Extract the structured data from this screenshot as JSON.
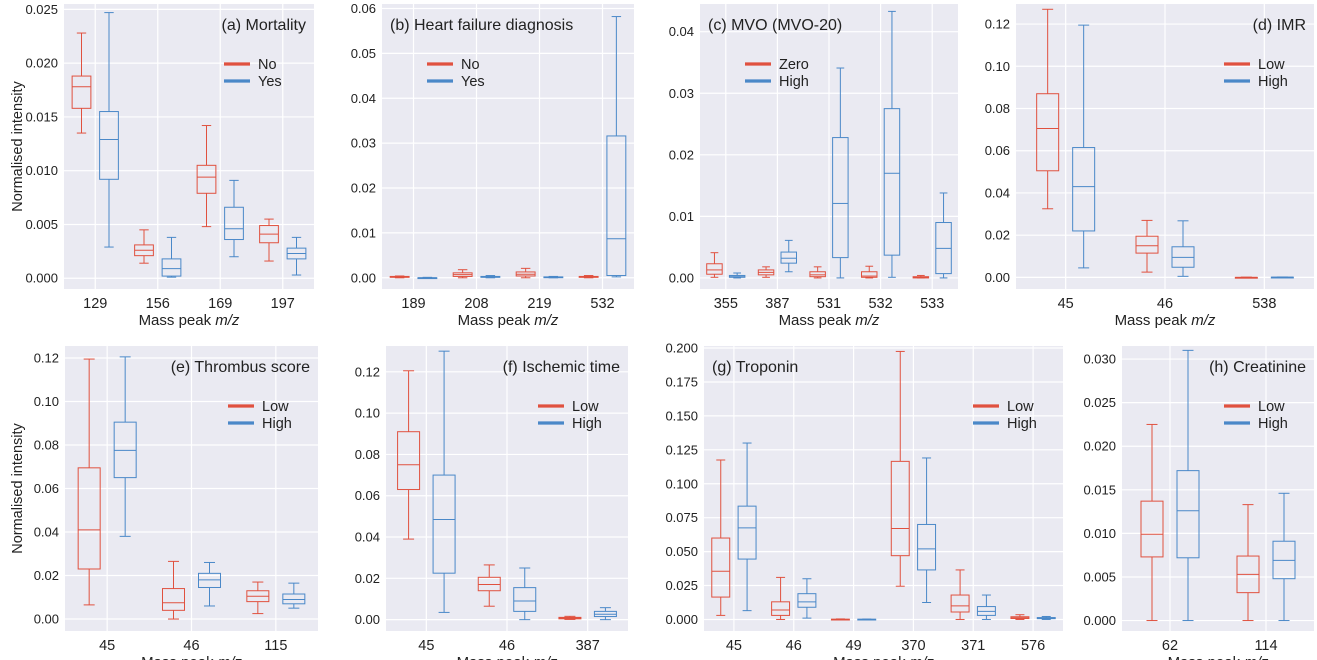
{
  "figure": {
    "ylabel": "Normalised intensity",
    "xlabel_prefix": "Mass peak ",
    "xlabel_italic": "m/z"
  },
  "colors": {
    "group_a": "#e0513f",
    "group_b": "#4a88c8",
    "grid": "#ffffff",
    "panel_bg": "#eaeaf2"
  },
  "chart_data": [
    {
      "type": "box",
      "title": "(a) Mortality",
      "legend": [
        "No",
        "Yes"
      ],
      "legend_position": "top-right",
      "ylim": [
        -0.001,
        0.0255
      ],
      "yticks": [
        0.0,
        0.005,
        0.01,
        0.015,
        0.02,
        0.025
      ],
      "ytick_labels": [
        "0.000",
        "0.005",
        "0.010",
        "0.015",
        "0.020",
        "0.025"
      ],
      "show_ylabel": true,
      "categories": [
        "129",
        "156",
        "169",
        "197"
      ],
      "series": [
        {
          "name": "No",
          "boxes": [
            {
              "min": 0.0135,
              "q1": 0.0158,
              "median": 0.0178,
              "q3": 0.0188,
              "max": 0.0228
            },
            {
              "min": 0.0014,
              "q1": 0.0021,
              "median": 0.0026,
              "q3": 0.0031,
              "max": 0.0045
            },
            {
              "min": 0.0048,
              "q1": 0.0079,
              "median": 0.0094,
              "q3": 0.0105,
              "max": 0.0142
            },
            {
              "min": 0.0016,
              "q1": 0.0033,
              "median": 0.0041,
              "q3": 0.0049,
              "max": 0.0055
            }
          ]
        },
        {
          "name": "Yes",
          "boxes": [
            {
              "min": 0.0029,
              "q1": 0.0092,
              "median": 0.0129,
              "q3": 0.0155,
              "max": 0.0247
            },
            {
              "min": 0.0001,
              "q1": 0.0002,
              "median": 0.0009,
              "q3": 0.0018,
              "max": 0.0038
            },
            {
              "min": 0.002,
              "q1": 0.0036,
              "median": 0.0046,
              "q3": 0.0066,
              "max": 0.0091
            },
            {
              "min": 0.0003,
              "q1": 0.0018,
              "median": 0.0023,
              "q3": 0.0028,
              "max": 0.0038
            }
          ]
        }
      ]
    },
    {
      "type": "box",
      "title": "(b) Heart failure diagnosis",
      "legend": [
        "No",
        "Yes"
      ],
      "legend_position": "top-left",
      "ylim": [
        -0.0025,
        0.061
      ],
      "yticks": [
        0.0,
        0.01,
        0.02,
        0.03,
        0.04,
        0.05,
        0.06
      ],
      "ytick_labels": [
        "0.00",
        "0.01",
        "0.02",
        "0.03",
        "0.04",
        "0.05",
        "0.06"
      ],
      "show_ylabel": false,
      "categories": [
        "189",
        "208",
        "219",
        "532"
      ],
      "series": [
        {
          "name": "No",
          "boxes": [
            {
              "min": 0.0,
              "q1": 0.0001,
              "median": 0.0002,
              "q3": 0.0003,
              "max": 0.0004
            },
            {
              "min": 0.0,
              "q1": 0.0003,
              "median": 0.0007,
              "q3": 0.0011,
              "max": 0.0018
            },
            {
              "min": 0.0,
              "q1": 0.0004,
              "median": 0.0008,
              "q3": 0.0013,
              "max": 0.0021
            },
            {
              "min": 0.0,
              "q1": 0.0001,
              "median": 0.0002,
              "q3": 0.0003,
              "max": 0.0005
            }
          ]
        },
        {
          "name": "Yes",
          "boxes": [
            {
              "min": 0.0,
              "q1": 0.0,
              "median": 0.0,
              "q3": 0.0,
              "max": 0.0001
            },
            {
              "min": 0.0,
              "q1": 0.0001,
              "median": 0.0002,
              "q3": 0.0003,
              "max": 0.0005
            },
            {
              "min": 0.0,
              "q1": 0.0001,
              "median": 0.0001,
              "q3": 0.0002,
              "max": 0.0003
            },
            {
              "min": 0.0002,
              "q1": 0.0005,
              "median": 0.0087,
              "q3": 0.0316,
              "max": 0.0582
            }
          ]
        }
      ]
    },
    {
      "type": "box",
      "title": "(c) MVO (MVO-20)",
      "legend": [
        "Zero",
        "High"
      ],
      "legend_position": "top-left",
      "ylim": [
        -0.0018,
        0.0445
      ],
      "yticks": [
        0.0,
        0.01,
        0.02,
        0.03,
        0.04
      ],
      "ytick_labels": [
        "0.00",
        "0.01",
        "0.02",
        "0.03",
        "0.04"
      ],
      "show_ylabel": false,
      "categories": [
        "355",
        "387",
        "531",
        "532",
        "533"
      ],
      "series": [
        {
          "name": "Zero",
          "boxes": [
            {
              "min": 0.0001,
              "q1": 0.0006,
              "median": 0.0013,
              "q3": 0.0023,
              "max": 0.0041
            },
            {
              "min": 0.0001,
              "q1": 0.0005,
              "median": 0.0009,
              "q3": 0.0013,
              "max": 0.0018
            },
            {
              "min": 0.0,
              "q1": 0.0002,
              "median": 0.0005,
              "q3": 0.001,
              "max": 0.0018
            },
            {
              "min": 0.0,
              "q1": 0.0001,
              "median": 0.0003,
              "q3": 0.001,
              "max": 0.0019
            },
            {
              "min": 0.0,
              "q1": 0.0,
              "median": 0.0001,
              "q3": 0.0002,
              "max": 0.0004
            }
          ]
        },
        {
          "name": "High",
          "boxes": [
            {
              "min": 0.0,
              "q1": 0.0001,
              "median": 0.0002,
              "q3": 0.0004,
              "max": 0.0008
            },
            {
              "min": 0.001,
              "q1": 0.0024,
              "median": 0.0032,
              "q3": 0.0042,
              "max": 0.0061
            },
            {
              "min": 0.0,
              "q1": 0.0033,
              "median": 0.0121,
              "q3": 0.0228,
              "max": 0.0341
            },
            {
              "min": 0.0001,
              "q1": 0.0037,
              "median": 0.017,
              "q3": 0.0275,
              "max": 0.0433
            },
            {
              "min": 0.0,
              "q1": 0.0007,
              "median": 0.0048,
              "q3": 0.009,
              "max": 0.0138
            }
          ]
        }
      ]
    },
    {
      "type": "box",
      "title": "(d) IMR",
      "legend": [
        "Low",
        "High"
      ],
      "legend_position": "top-right",
      "ylim": [
        -0.0055,
        0.1295
      ],
      "yticks": [
        0.0,
        0.02,
        0.04,
        0.06,
        0.08,
        0.1,
        0.12
      ],
      "ytick_labels": [
        "0.00",
        "0.02",
        "0.04",
        "0.06",
        "0.08",
        "0.10",
        "0.12"
      ],
      "show_ylabel": false,
      "categories": [
        "45",
        "46",
        "538"
      ],
      "series": [
        {
          "name": "Low",
          "boxes": [
            {
              "min": 0.0325,
              "q1": 0.0505,
              "median": 0.0705,
              "q3": 0.087,
              "max": 0.127
            },
            {
              "min": 0.0025,
              "q1": 0.0115,
              "median": 0.015,
              "q3": 0.0195,
              "max": 0.027
            },
            {
              "min": 0.0,
              "q1": 0.0,
              "median": 0.0,
              "q3": 0.0,
              "max": 0.0001
            }
          ]
        },
        {
          "name": "High",
          "boxes": [
            {
              "min": 0.0045,
              "q1": 0.022,
              "median": 0.043,
              "q3": 0.0615,
              "max": 0.1195
            },
            {
              "min": 0.0005,
              "q1": 0.0048,
              "median": 0.0095,
              "q3": 0.0145,
              "max": 0.0268
            },
            {
              "min": 0.0,
              "q1": 0.0,
              "median": 0.0001,
              "q3": 0.0001,
              "max": 0.0002
            }
          ]
        }
      ]
    },
    {
      "type": "box",
      "title": "(e) Thrombus score",
      "legend": [
        "Low",
        "High"
      ],
      "legend_position": "top-right",
      "ylim": [
        -0.0055,
        0.1255
      ],
      "yticks": [
        0.0,
        0.02,
        0.04,
        0.06,
        0.08,
        0.1,
        0.12
      ],
      "ytick_labels": [
        "0.00",
        "0.02",
        "0.04",
        "0.06",
        "0.08",
        "0.10",
        "0.12"
      ],
      "show_ylabel": true,
      "categories": [
        "45",
        "46",
        "115"
      ],
      "series": [
        {
          "name": "Low",
          "boxes": [
            {
              "min": 0.0065,
              "q1": 0.023,
              "median": 0.041,
              "q3": 0.0695,
              "max": 0.1195
            },
            {
              "min": 0.0,
              "q1": 0.004,
              "median": 0.0075,
              "q3": 0.014,
              "max": 0.0265
            },
            {
              "min": 0.0025,
              "q1": 0.008,
              "median": 0.0105,
              "q3": 0.013,
              "max": 0.017
            }
          ]
        },
        {
          "name": "High",
          "boxes": [
            {
              "min": 0.038,
              "q1": 0.065,
              "median": 0.0775,
              "q3": 0.0905,
              "max": 0.1205
            },
            {
              "min": 0.006,
              "q1": 0.0145,
              "median": 0.018,
              "q3": 0.021,
              "max": 0.026
            },
            {
              "min": 0.005,
              "q1": 0.007,
              "median": 0.009,
              "q3": 0.0115,
              "max": 0.0165
            }
          ]
        }
      ]
    },
    {
      "type": "box",
      "title": "(f) Ischemic time",
      "legend": [
        "Low",
        "High"
      ],
      "legend_position": "top-right",
      "ylim": [
        -0.0055,
        0.1325
      ],
      "yticks": [
        0.0,
        0.02,
        0.04,
        0.06,
        0.08,
        0.1,
        0.12
      ],
      "ytick_labels": [
        "0.00",
        "0.02",
        "0.04",
        "0.06",
        "0.08",
        "0.10",
        "0.12"
      ],
      "show_ylabel": false,
      "categories": [
        "45",
        "46",
        "387"
      ],
      "series": [
        {
          "name": "Low",
          "boxes": [
            {
              "min": 0.039,
              "q1": 0.063,
              "median": 0.075,
              "q3": 0.091,
              "max": 0.1205
            },
            {
              "min": 0.0065,
              "q1": 0.014,
              "median": 0.017,
              "q3": 0.0205,
              "max": 0.0265
            },
            {
              "min": 0.0001,
              "q1": 0.0004,
              "median": 0.0008,
              "q3": 0.0011,
              "max": 0.0016
            }
          ]
        },
        {
          "name": "High",
          "boxes": [
            {
              "min": 0.0035,
              "q1": 0.0225,
              "median": 0.0485,
              "q3": 0.07,
              "max": 0.13
            },
            {
              "min": 0.0,
              "q1": 0.004,
              "median": 0.009,
              "q3": 0.0155,
              "max": 0.025
            },
            {
              "min": 0.0,
              "q1": 0.0015,
              "median": 0.0026,
              "q3": 0.004,
              "max": 0.0058
            }
          ]
        }
      ]
    },
    {
      "type": "box",
      "title": "(g) Troponin",
      "legend": [
        "Low",
        "High"
      ],
      "legend_position": "top-right",
      "ylim": [
        -0.0085,
        0.2015
      ],
      "yticks": [
        0.0,
        0.025,
        0.05,
        0.075,
        0.1,
        0.125,
        0.15,
        0.175,
        0.2
      ],
      "ytick_labels": [
        "0.000",
        "0.025",
        "0.050",
        "0.075",
        "0.100",
        "0.125",
        "0.150",
        "0.175",
        "0.200"
      ],
      "show_ylabel": false,
      "categories": [
        "45",
        "46",
        "49",
        "370",
        "371",
        "576"
      ],
      "series": [
        {
          "name": "Low",
          "boxes": [
            {
              "min": 0.003,
              "q1": 0.0165,
              "median": 0.0355,
              "q3": 0.06,
              "max": 0.1175
            },
            {
              "min": 0.0,
              "q1": 0.003,
              "median": 0.007,
              "q3": 0.013,
              "max": 0.031
            },
            {
              "min": 0.0,
              "q1": 0.0,
              "median": 0.0001,
              "q3": 0.0002,
              "max": 0.0004
            },
            {
              "min": 0.0245,
              "q1": 0.047,
              "median": 0.067,
              "q3": 0.1165,
              "max": 0.1975
            },
            {
              "min": 0.0,
              "q1": 0.0055,
              "median": 0.01,
              "q3": 0.018,
              "max": 0.0365
            },
            {
              "min": 0.0,
              "q1": 0.0007,
              "median": 0.0013,
              "q3": 0.002,
              "max": 0.0035
            }
          ]
        },
        {
          "name": "High",
          "boxes": [
            {
              "min": 0.0065,
              "q1": 0.0445,
              "median": 0.0675,
              "q3": 0.0835,
              "max": 0.13
            },
            {
              "min": 0.001,
              "q1": 0.009,
              "median": 0.013,
              "q3": 0.019,
              "max": 0.03
            },
            {
              "min": 0.0,
              "q1": 0.0001,
              "median": 0.0001,
              "q3": 0.0002,
              "max": 0.0003
            },
            {
              "min": 0.0125,
              "q1": 0.0365,
              "median": 0.052,
              "q3": 0.07,
              "max": 0.119
            },
            {
              "min": 0.0,
              "q1": 0.003,
              "median": 0.006,
              "q3": 0.0095,
              "max": 0.018
            },
            {
              "min": 0.0,
              "q1": 0.0006,
              "median": 0.001,
              "q3": 0.0014,
              "max": 0.0022
            }
          ]
        }
      ]
    },
    {
      "type": "box",
      "title": "(h) Creatinine",
      "legend": [
        "Low",
        "High"
      ],
      "legend_position": "top-right",
      "ylim": [
        -0.0012,
        0.0315
      ],
      "yticks": [
        0.0,
        0.005,
        0.01,
        0.015,
        0.02,
        0.025,
        0.03
      ],
      "ytick_labels": [
        "0.000",
        "0.005",
        "0.010",
        "0.015",
        "0.020",
        "0.025",
        "0.030"
      ],
      "show_ylabel": false,
      "categories": [
        "62",
        "114"
      ],
      "series": [
        {
          "name": "Low",
          "boxes": [
            {
              "min": 0.0,
              "q1": 0.0073,
              "median": 0.0099,
              "q3": 0.0137,
              "max": 0.0225
            },
            {
              "min": 0.0,
              "q1": 0.0032,
              "median": 0.0053,
              "q3": 0.0074,
              "max": 0.0133
            }
          ]
        },
        {
          "name": "High",
          "boxes": [
            {
              "min": 0.0,
              "q1": 0.0072,
              "median": 0.0126,
              "q3": 0.0172,
              "max": 0.031
            },
            {
              "min": 0.0,
              "q1": 0.0048,
              "median": 0.0069,
              "q3": 0.0091,
              "max": 0.0146
            }
          ]
        }
      ]
    }
  ]
}
